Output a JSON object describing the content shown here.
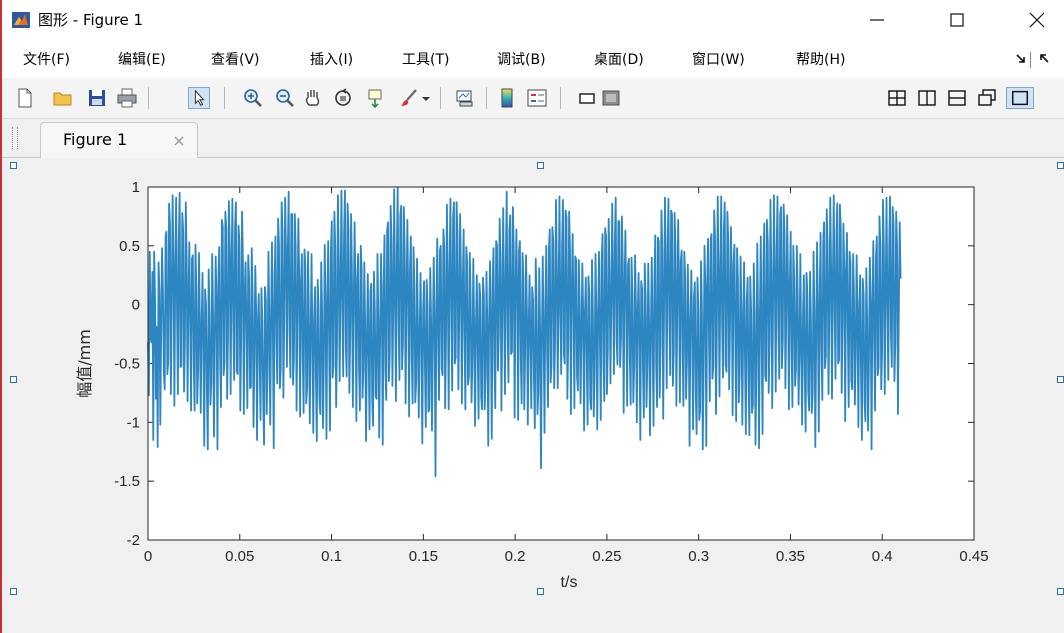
{
  "window": {
    "title": "图形 - Figure 1",
    "minimize_icon": "minimize-icon",
    "maximize_icon": "maximize-icon",
    "close_icon": "close-icon"
  },
  "menu": {
    "items": [
      "文件(F)",
      "编辑(E)",
      "查看(V)",
      "插入(I)",
      "工具(T)",
      "调试(B)",
      "桌面(D)",
      "窗口(W)",
      "帮助(H)"
    ]
  },
  "toolbar": {
    "icons": [
      "new-figure-icon",
      "open-icon",
      "save-icon",
      "print-icon",
      "edit-plot-arrow-icon",
      "zoom-in-icon",
      "zoom-out-icon",
      "pan-hand-icon",
      "rotate-3d-icon",
      "data-cursor-icon",
      "brush-icon",
      "link-plot-icon",
      "colorbar-icon",
      "legend-icon",
      "hide-plot-tools-icon",
      "show-plot-tools-icon",
      "tile-grid-icon",
      "tile-columns-icon",
      "tile-rows-icon",
      "float-icon",
      "maximize-doc-icon"
    ],
    "selected": "edit-plot-arrow-icon"
  },
  "tab": {
    "label": "Figure 1"
  },
  "colors": {
    "line": "#2e86c1",
    "axes_bg": "#ffffff",
    "figure_bg": "#f0f0f0",
    "handle": "#2a6fb5"
  },
  "chart_data": {
    "type": "line",
    "title": "",
    "xlabel": "t/s",
    "ylabel": "幅值/mm",
    "xlim": [
      0,
      0.45
    ],
    "ylim": [
      -2,
      1
    ],
    "xticks": [
      "0",
      "0.05",
      "0.1",
      "0.15",
      "0.2",
      "0.25",
      "0.3",
      "0.35",
      "0.4",
      "0.45"
    ],
    "yticks": [
      "1",
      "0.5",
      "0",
      "-0.5",
      "-1",
      "-1.5",
      "-2"
    ],
    "grid": false,
    "legend": "none",
    "series": [
      {
        "sample_interval_s": 0.0005,
        "x_start": 0,
        "x_end": 0.41,
        "values": [
          -0.32,
          -0.77,
          0.45,
          -0.29,
          -0.32,
          0.28,
          -1.15,
          0.45,
          0.08,
          -0.8,
          -0.19,
          -1.21,
          0.36,
          0.12,
          -1.02,
          -0.18,
          0.48,
          0.1,
          -0.57,
          -0.72,
          0.58,
          0.62,
          -0.59,
          -0.49,
          0.86,
          0.68,
          -0.76,
          -0.02,
          0.93,
          0.35,
          -0.86,
          0.29,
          0.91,
          -0.05,
          -0.76,
          0.54,
          0.95,
          -0.53,
          -0.52,
          0.78,
          0.62,
          -0.74,
          -0.29,
          0.87,
          0.36,
          -0.82,
          0.04,
          0.53,
          -0.13,
          -0.9,
          0.39,
          0.42,
          -0.48,
          -0.9,
          0.51,
          0.14,
          -0.84,
          -0.55,
          0.44,
          -0.17,
          -0.92,
          -0.18,
          0.27,
          -0.38,
          -1.2,
          0.13,
          -0.01,
          -0.74,
          -1.23,
          0.3,
          -0.07,
          -0.85,
          -0.66,
          0.43,
          -0.07,
          -1.12,
          -0.32,
          0.41,
          -0.01,
          -1.23,
          0.19,
          0.49,
          -0.43,
          -0.87,
          0.72,
          0.67,
          -0.6,
          -0.49,
          0.79,
          0.66,
          -0.8,
          -0.26,
          0.88,
          0.49,
          -0.76,
          0.29,
          0.9,
          -0.14,
          -0.64,
          0.66,
          0.87,
          -0.57,
          -0.59,
          0.67,
          0.54,
          -0.9,
          -0.28,
          0.79,
          0.36,
          -0.93,
          0.11,
          0.36,
          -0.25,
          -0.88,
          0.42,
          0.22,
          -0.71,
          -0.7,
          0.48,
          0.08,
          -1.04,
          -0.46,
          0.33,
          -0.03,
          -1.15,
          -0.18,
          0.09,
          -0.48,
          -0.98,
          0.14,
          -0.13,
          -0.81,
          -1.19,
          0.15,
          0.05,
          -0.93,
          -0.58,
          0.45,
          -0.11,
          -1.02,
          -0.14,
          0.53,
          -0.2,
          -1.22,
          0.25,
          0.58,
          -0.29,
          -0.67,
          0.73,
          0.51,
          -0.71,
          -0.55,
          0.87,
          0.63,
          -0.79,
          -0.06,
          0.91,
          0.46,
          -0.53,
          0.43,
          0.96,
          -0.22,
          -0.62,
          0.77,
          0.77,
          -0.68,
          -0.44,
          0.77,
          0.47,
          -0.9,
          -0.1,
          0.73,
          0.21,
          -0.95,
          0.16,
          0.43,
          -0.43,
          -0.92,
          0.47,
          0.33,
          -0.84,
          -0.7,
          0.45,
          -0.14,
          -1.01,
          -0.31,
          0.43,
          -0.3,
          -1.09,
          -0.12,
          0.15,
          -0.6,
          -1.16,
          0.21,
          -0.02,
          -0.81,
          -0.93,
          0.36,
          -0.05,
          -1.05,
          -0.52,
          0.51,
          -0.01,
          -1.14,
          0.04,
          0.54,
          -0.31,
          -1.07,
          0.44,
          0.71,
          -0.62,
          -0.52,
          0.79,
          0.48,
          -0.87,
          -0.32,
          0.93,
          0.37,
          -0.65,
          0.14,
          0.97,
          0.06,
          -0.61,
          0.61,
          0.97,
          -0.35,
          -0.61,
          0.86,
          0.65,
          -0.75,
          -0.25,
          0.77,
          0.24,
          -0.87,
          -0.02,
          0.7,
          0.06,
          -0.99,
          0.22,
          0.43,
          -0.52,
          -0.9,
          0.5,
          0.29,
          -0.79,
          -0.55,
          0.36,
          -0.19,
          -1.16,
          -0.32,
          0.26,
          -0.41,
          -1.06,
          0.11,
          0.18,
          -0.81,
          -1.03,
          0.28,
          -0.05,
          -0.78,
          -0.8,
          0.43,
          -0.12,
          -1.13,
          -0.29,
          0.43,
          -0.06,
          -1.19,
          0.18,
          0.59,
          -0.56,
          -0.81,
          0.63,
          0.7,
          -0.65,
          -0.41,
          0.84,
          0.54,
          -0.69,
          -0.02,
          0.98,
          0.07,
          -0.82,
          0.44,
          0.99,
          -0.13,
          -0.64,
          0.76,
          0.84,
          -0.55,
          -0.31,
          0.83,
          0.43,
          -0.84,
          0.07,
          0.72,
          0.06,
          -0.95,
          0.31,
          0.58,
          -0.44,
          -0.84,
          0.49,
          0.19,
          -0.83,
          -0.66,
          0.39,
          -0.18,
          -0.96,
          -0.25,
          0.27,
          -0.34,
          -1.18,
          -0.04,
          0.2,
          -0.53,
          -1.04,
          0.21,
          -0.01,
          -0.91,
          -0.89,
          0.31,
          -0.14,
          -1.07,
          -0.29,
          0.4,
          -0.17,
          -1.46,
          -0.06,
          0.56,
          -0.28,
          -0.81,
          0.46,
          0.5,
          -0.54,
          -0.6,
          0.64,
          0.49,
          -0.88,
          -0.27,
          0.85,
          0.18,
          -0.89,
          0.31,
          0.9,
          -0.04,
          -0.73,
          0.73,
          0.87,
          -0.5,
          -0.45,
          0.87,
          0.62,
          -0.72,
          -0.12,
          0.77,
          0.23,
          -0.84,
          0.16,
          0.64,
          -0.25,
          -0.89,
          0.49,
          0.37,
          -0.68,
          -0.61,
          0.44,
          0.05,
          -0.83,
          -0.47,
          0.39,
          -0.19,
          -1.03,
          -0.18,
          0.25,
          -0.38,
          -0.97,
          0.18,
          0.06,
          -0.79,
          -0.89,
          0.23,
          0.08,
          -0.89,
          -0.61,
          0.28,
          -0.19,
          -1.2,
          -0.15,
          0.37,
          -0.23,
          -1.14,
          0.21,
          0.48,
          -0.5,
          -0.88,
          0.54,
          0.51,
          -0.56,
          -0.27,
          0.73,
          0.38,
          -0.9,
          -0.07,
          0.82,
          0.06,
          -0.76,
          0.35,
          0.96,
          -0.2,
          -0.66,
          0.63,
          0.76,
          -0.42,
          -0.4,
          0.83,
          0.48,
          -0.96,
          0.07,
          0.64,
          0.08,
          -0.98,
          0.46,
          0.54,
          -0.46,
          -0.84,
          0.44,
          0.24,
          -0.89,
          -0.37,
          0.42,
          -0.07,
          -1.02,
          -0.21,
          0.25,
          -0.36,
          -0.88,
          0.15,
          0.04,
          -0.63,
          -1.05,
          0.39,
          0.02,
          -0.93,
          -0.74,
          0.31,
          -0.21,
          -1.39,
          -0.3,
          0.41,
          -0.27,
          -1.09,
          0.02,
          0.5,
          -0.39,
          -0.87,
          0.48,
          0.64,
          -0.66,
          -0.51,
          0.66,
          0.54,
          -0.71,
          -0.3,
          0.89,
          0.33,
          -0.71,
          0.1,
          0.92,
          -0.08,
          -0.59,
          0.5,
          0.89,
          -0.42,
          -0.5,
          0.8,
          0.74,
          -0.8,
          -0.29,
          0.79,
          0.46,
          -0.93,
          0.08,
          0.6,
          -0.05,
          -0.88,
          0.41,
          0.38,
          -0.61,
          -0.73,
          0.38,
          0.01,
          -0.84,
          -0.32,
          0.35,
          -0.08,
          -1.07,
          -0.07,
          0.23,
          -0.42,
          -1.02,
          0.24,
          0.09,
          -0.81,
          -0.89,
          0.38,
          -0.06,
          -0.95,
          -0.57,
          0.43,
          -0.09,
          -1.06,
          -0.1,
          0.45,
          -0.3,
          -0.98,
          0.37,
          0.6,
          -0.49,
          -0.82,
          0.65,
          0.58,
          -0.76,
          -0.38,
          0.73,
          0.25,
          -0.67,
          0.02,
          0.86,
          0.12,
          -0.59,
          0.53,
          0.91,
          -0.3,
          -0.51,
          0.71,
          0.71,
          -0.53,
          -0.28,
          0.75,
          0.35,
          -0.92,
          0.1,
          0.63,
          0.0,
          -0.86,
          0.34,
          0.39,
          -0.45,
          -0.85,
          0.4,
          0.08,
          -0.83,
          -0.53,
          0.42,
          -0.03,
          -1.0,
          -0.09,
          0.27,
          -0.33,
          -1.15,
          0.2,
          0.14,
          -0.56,
          -0.96,
          0.35,
          0.07,
          -0.87,
          -0.51,
          0.35,
          -0.17,
          -1.11,
          -0.19,
          0.4,
          -0.33,
          -1.03,
          0.23,
          0.59,
          -0.51,
          -0.87,
          0.57,
          0.54,
          -0.79,
          -0.34,
          0.8,
          0.46,
          -0.97,
          -0.02,
          0.91,
          0.21,
          -0.71,
          0.48,
          0.9,
          -0.1,
          -0.6,
          0.8,
          0.77,
          -0.69,
          -0.41,
          0.78,
          0.49,
          -0.86,
          -0.03,
          0.72,
          0.15,
          -0.83,
          0.37,
          0.46,
          -0.41,
          -0.86,
          0.45,
          0.25,
          -0.8,
          -0.48,
          0.34,
          -0.17,
          -1.2,
          -0.14,
          0.29,
          -0.25,
          -1.06,
          0.07,
          0.19,
          -0.74,
          -1.1,
          0.23,
          -0.04,
          -0.98,
          -0.9,
          0.37,
          -0.02,
          -1.23,
          -0.5,
          0.5,
          0.12,
          -1.2,
          0.16,
          0.56,
          -0.23,
          -0.82,
          0.55,
          0.6,
          -0.63,
          -0.53,
          0.8,
          0.55,
          -0.93,
          -0.23,
          0.92,
          0.28,
          -0.78,
          0.27,
          0.92,
          -0.13,
          -0.62,
          0.63,
          0.87,
          -0.51,
          -0.57,
          0.79,
          0.55,
          -0.72,
          -0.15,
          0.66,
          0.17,
          -0.94,
          0.36,
          0.51,
          -0.26,
          -0.99,
          0.48,
          0.22,
          -0.83,
          -0.59,
          0.41,
          -0.04,
          -1.02,
          -0.21,
          0.36,
          -0.43,
          -1.1,
          0.03,
          0.23,
          -0.6,
          -1.11,
          0.24,
          -0.05,
          -0.92,
          -0.85,
          0.35,
          -0.07,
          -1.19,
          -0.52,
          0.52,
          -0.15,
          -1.22,
          -0.08,
          0.58,
          -0.31,
          -1.1,
          0.34,
          0.69,
          -0.6,
          -0.65,
          0.72,
          0.53,
          -0.75,
          -0.31,
          0.89,
          0.29,
          -0.88,
          0.05,
          0.93,
          0.14,
          -0.74,
          0.45,
          0.92,
          -0.17,
          -0.63,
          0.76,
          0.83,
          -0.54,
          -0.31,
          0.85,
          0.6,
          -0.71,
          -0.08,
          0.76,
          0.18,
          -0.89,
          0.16,
          0.62,
          -0.35,
          -0.87,
          0.5,
          0.22,
          -0.69,
          -0.55,
          0.5,
          0.06,
          -0.85,
          -0.4,
          0.43,
          -0.38,
          -1.02,
          -0.09,
          0.25,
          -0.59,
          -1.08,
          0.27,
          0.09,
          -0.74,
          -0.9,
          0.28,
          -0.11,
          -0.92,
          -0.75,
          0.45,
          -0.04,
          -1.21,
          -0.31,
          0.53,
          -0.11,
          -1.08,
          0.1,
          0.61,
          -0.42,
          -0.81,
          0.53,
          0.7,
          -0.54,
          -0.44,
          0.81,
          0.51,
          -0.76,
          -0.11,
          0.91,
          0.31,
          -0.8,
          0.24,
          0.93,
          -0.04,
          -0.63,
          0.58,
          0.86,
          -0.5,
          -0.47,
          0.85,
          0.65,
          -0.75,
          -0.18,
          0.69,
          0.28,
          -0.99,
          0.27,
          0.61,
          -0.2,
          -0.87,
          0.45,
          0.35,
          -0.65,
          -0.72,
          0.43,
          0.11,
          -0.85,
          -0.42,
          0.42,
          -0.11,
          -1.04,
          -0.02,
          0.25,
          -0.57,
          -1.15,
          0.22,
          0.08,
          -0.83,
          -0.99,
          0.31,
          -0.13,
          -1.07,
          -0.48,
          0.4,
          -0.02,
          -1.23,
          0.02,
          0.54,
          -0.3,
          -0.9,
          0.4,
          0.58,
          -0.6,
          -0.53,
          0.75,
          0.5,
          -0.72,
          -0.39,
          0.89,
          0.46,
          -0.76,
          0.08,
          0.91,
          0.05,
          -0.64,
          0.46,
          0.92,
          -0.22,
          -0.53,
          0.83,
          0.68,
          -0.65,
          -0.33,
          0.79,
          0.5,
          -0.93,
          -0.05,
          0.7,
          0.22
        ]
      }
    ]
  }
}
